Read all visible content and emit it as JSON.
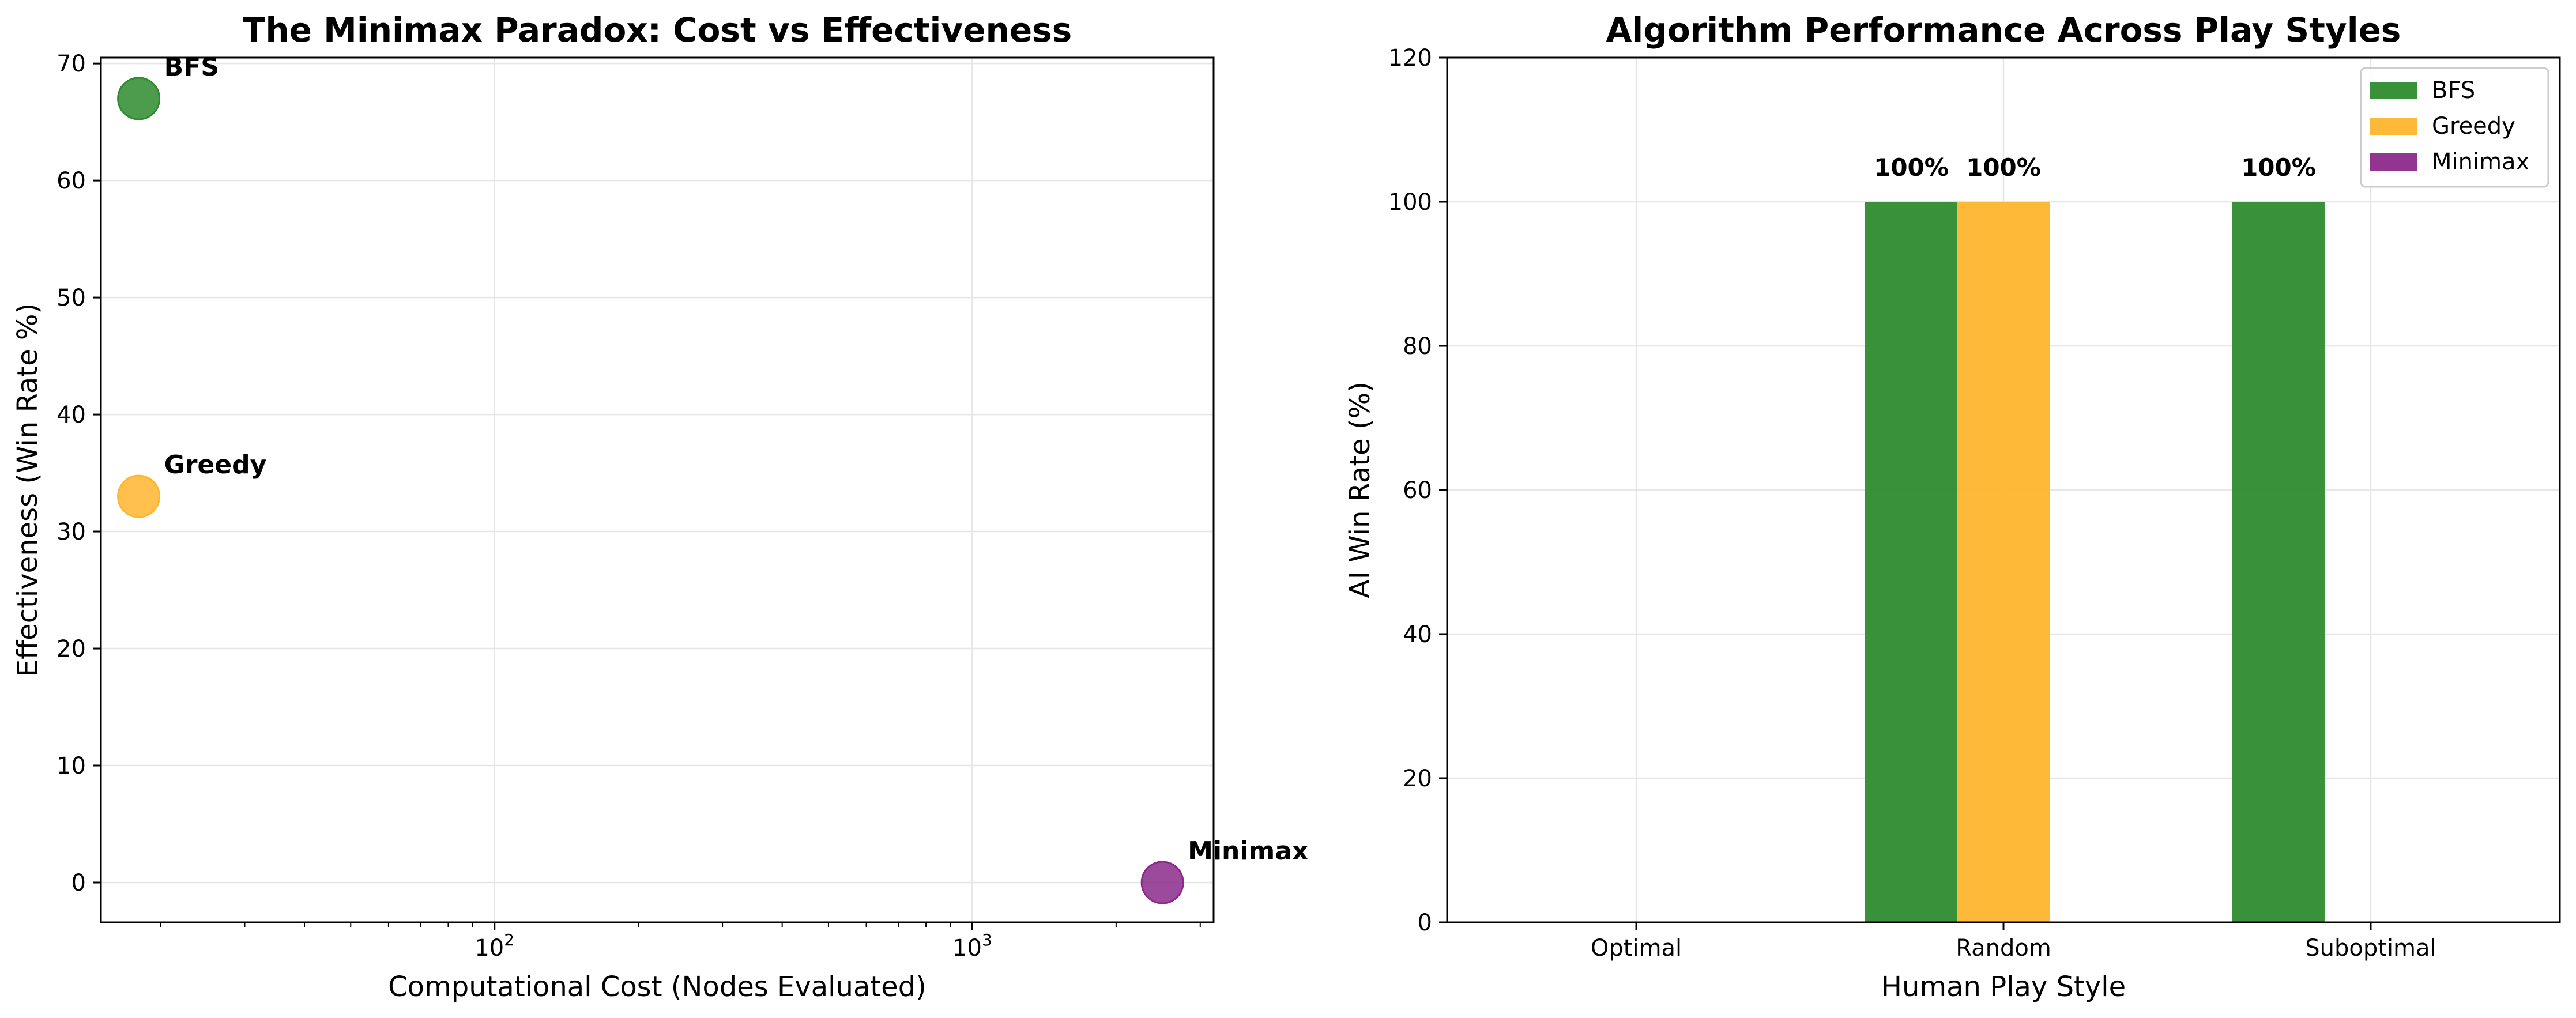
{
  "chart_data": [
    {
      "type": "scatter",
      "title": "The Minimax Paradox: Cost vs Effectiveness",
      "xlabel": "Computational Cost (Nodes Evaluated)",
      "ylabel": "Effectiveness (Win Rate %)",
      "x_scale": "log",
      "xlim": [
        15,
        3200
      ],
      "ylim": [
        -3.4,
        70.5
      ],
      "x_ticks_major": [
        {
          "value": 100,
          "base": "10",
          "exp": "2"
        },
        {
          "value": 1000,
          "base": "10",
          "exp": "3"
        }
      ],
      "y_ticks": [
        0,
        10,
        20,
        30,
        40,
        50,
        60,
        70
      ],
      "grid": true,
      "points": [
        {
          "label": "BFS",
          "x": 18,
          "y": 67,
          "color": "#2e8b2e"
        },
        {
          "label": "Greedy",
          "x": 18,
          "y": 33,
          "color": "#ffb52e"
        },
        {
          "label": "Minimax",
          "x": 2500,
          "y": 0,
          "color": "#8b2a8b"
        }
      ]
    },
    {
      "type": "bar",
      "title": "Algorithm Performance Across Play Styles",
      "xlabel": "Human Play Style",
      "ylabel": "AI Win Rate (%)",
      "categories": [
        "Optimal",
        "Random",
        "Suboptimal"
      ],
      "ylim": [
        0,
        120
      ],
      "y_ticks": [
        0,
        20,
        40,
        60,
        80,
        100,
        120
      ],
      "grid": true,
      "legend_position": "top-right",
      "series": [
        {
          "name": "BFS",
          "color": "#2e8b2e",
          "values": [
            0,
            100,
            100
          ],
          "labels": [
            "",
            "100%",
            "100%"
          ]
        },
        {
          "name": "Greedy",
          "color": "#ffb52e",
          "values": [
            0,
            100,
            0
          ],
          "labels": [
            "",
            "100%",
            ""
          ]
        },
        {
          "name": "Minimax",
          "color": "#8b2a8b",
          "values": [
            0,
            0,
            0
          ],
          "labels": [
            "",
            "",
            ""
          ]
        }
      ]
    }
  ]
}
